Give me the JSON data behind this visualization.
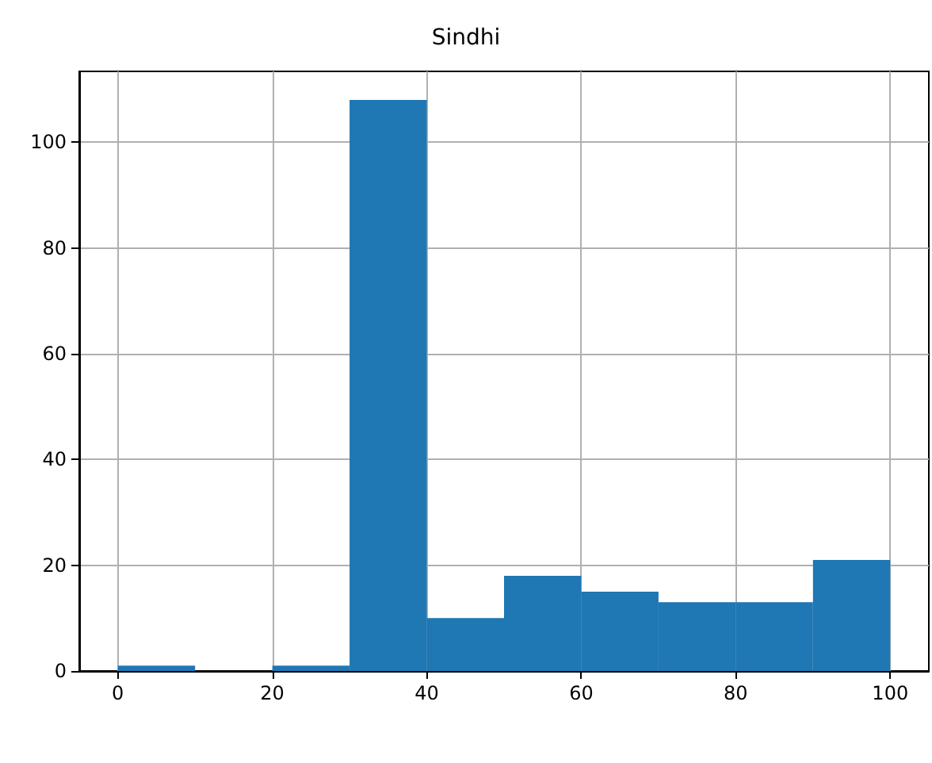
{
  "chart_data": {
    "type": "histogram",
    "title": "Sindhi",
    "bins": [
      0,
      10,
      20,
      30,
      40,
      50,
      60,
      70,
      80,
      90,
      100
    ],
    "values": [
      1,
      0,
      1,
      108,
      10,
      18,
      15,
      13,
      13,
      21
    ],
    "color": "#1f77b4",
    "xlim": [
      -5,
      105
    ],
    "xticks": [
      0,
      20,
      40,
      60,
      80,
      100
    ],
    "ylim": [
      0,
      113.4
    ],
    "yticks": [
      0,
      20,
      40,
      60,
      80,
      100
    ],
    "grid": true
  }
}
